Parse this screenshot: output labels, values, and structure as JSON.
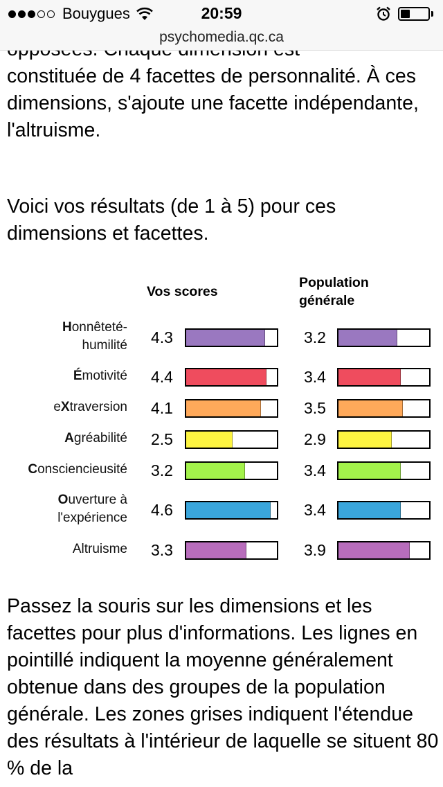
{
  "status_bar": {
    "carrier": "Bouygues",
    "time": "20:59",
    "signal_full": 3,
    "signal_total": 5,
    "battery_level": 0.35
  },
  "url_bar": {
    "domain": "psychomedia.qc.ca"
  },
  "article": {
    "p1_partial": "opposées. Chaque dimension est",
    "p1_text": "constituée de 4 facettes de personnalité. À ces dimensions, s'ajoute une facette indépendante, l'altruisme.",
    "p2_text": "Voici vos résultats (de 1 à 5) pour ces dimensions et facettes.",
    "p3_text": "Passez la souris sur les dimensions et les facettes pour plus d'informations. Les lignes en pointillé indiquent la moyenne généralement obtenue dans des groupes de la population générale. Les zones grises indiquent l'étendue des résultats à l'intérieur de laquelle se situent 80 % de la"
  },
  "results": {
    "col_scores": "Vos scores",
    "col_population": "Population générale",
    "scale_max": 5,
    "rows": [
      {
        "bold": "H",
        "rest": "onnêteté-",
        "line2": "humilité",
        "score": "4.3",
        "pop": "3.2",
        "color": "#9a78c0"
      },
      {
        "bold": "É",
        "rest": "motivité",
        "line2": "",
        "score": "4.4",
        "pop": "3.4",
        "color": "#ef4c5e"
      },
      {
        "bold": "X",
        "pre": "e",
        "rest": "traversion",
        "line2": "",
        "score": "4.1",
        "pop": "3.5",
        "color": "#ffa95a"
      },
      {
        "bold": "A",
        "rest": "gréabilité",
        "line2": "",
        "score": "2.5",
        "pop": "2.9",
        "color": "#fdf441"
      },
      {
        "bold": "C",
        "rest": "onsciencieusité",
        "line2": "",
        "score": "3.2",
        "pop": "3.4",
        "color": "#a3f24b"
      },
      {
        "bold": "O",
        "rest": "uverture à",
        "line2": "l'expérience",
        "score": "4.6",
        "pop": "3.4",
        "color": "#3aa6dc"
      },
      {
        "bold": "",
        "rest": "Altruisme",
        "line2": "",
        "score": "3.3",
        "pop": "3.9",
        "color": "#b86dbc"
      }
    ]
  }
}
